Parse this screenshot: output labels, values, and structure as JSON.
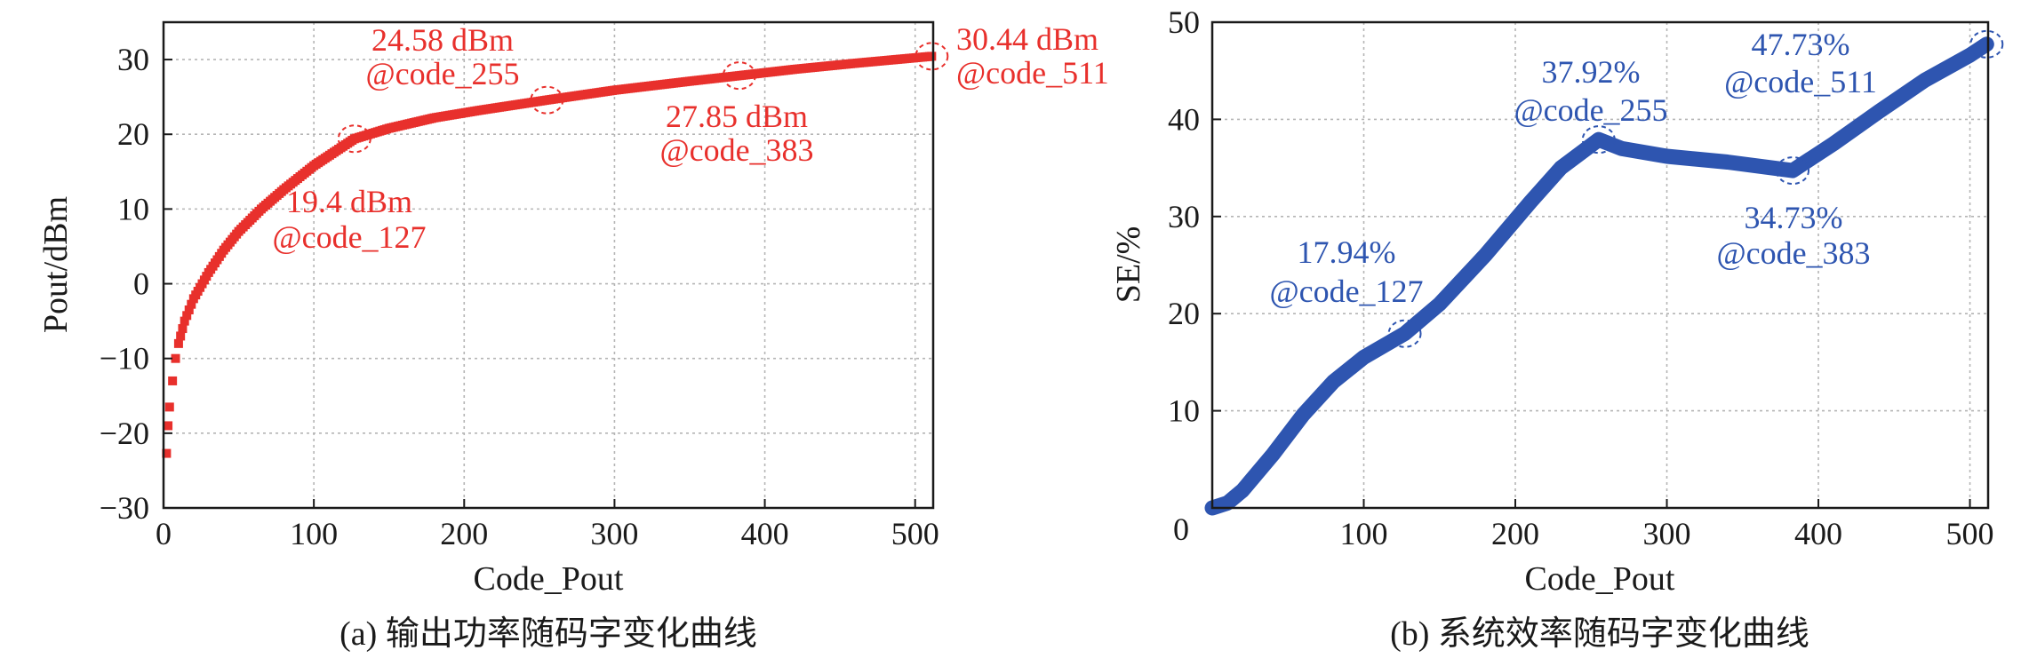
{
  "chart_data": [
    {
      "type": "scatter",
      "caption": "(a) 输出功率随码字变化曲线",
      "xlabel": "Code_Pout",
      "ylabel": "Pout/dBm",
      "xlim": [
        0,
        512
      ],
      "ylim": [
        -30,
        35
      ],
      "xticks": [
        0,
        100,
        200,
        300,
        400,
        500
      ],
      "yticks": [
        -30,
        -20,
        -10,
        0,
        10,
        20,
        30
      ],
      "ytick_labels": [
        "−30",
        "−20",
        "−10",
        "0",
        "10",
        "20",
        "30"
      ],
      "grid": true,
      "color": "#e8302c",
      "curve": {
        "x": [
          2,
          3,
          4,
          6,
          8,
          10,
          14,
          20,
          30,
          40,
          50,
          65,
          80,
          100,
          127,
          150,
          180,
          210,
          255,
          300,
          350,
          383,
          420,
          460,
          511
        ],
        "y": [
          -22.7,
          -19,
          -16.5,
          -13,
          -10,
          -8,
          -5,
          -2,
          1.5,
          4.5,
          7,
          10,
          12.6,
          15.8,
          19.4,
          20.8,
          22.2,
          23.2,
          24.58,
          25.9,
          27.1,
          27.85,
          28.7,
          29.5,
          30.44
        ]
      },
      "annotations": [
        {
          "x": 127,
          "y": 19.4,
          "value": "19.4 dBm",
          "code": "@code_127"
        },
        {
          "x": 255,
          "y": 24.58,
          "value": "24.58 dBm",
          "code": "@code_255"
        },
        {
          "x": 383,
          "y": 27.85,
          "value": "27.85 dBm",
          "code": "@code_383"
        },
        {
          "x": 511,
          "y": 30.44,
          "value": "30.44 dBm",
          "code": "@code_511"
        }
      ]
    },
    {
      "type": "line",
      "caption": "(b) 系统效率随码字变化曲线",
      "xlabel": "Code_Pout",
      "ylabel": "SE/%",
      "xlim": [
        0,
        512
      ],
      "ylim": [
        0,
        50
      ],
      "xticks": [
        100,
        200,
        300,
        400,
        500
      ],
      "yticks": [
        10,
        20,
        30,
        40,
        50
      ],
      "origin_label": "0",
      "grid": true,
      "color": "#2e55b0",
      "curve": {
        "x": [
          0,
          10,
          20,
          40,
          60,
          80,
          100,
          127,
          150,
          180,
          210,
          230,
          255,
          270,
          300,
          340,
          383,
          410,
          440,
          470,
          500,
          511
        ],
        "y": [
          0,
          0.5,
          1.8,
          5.5,
          9.6,
          13,
          15.5,
          17.94,
          21,
          26,
          31.5,
          35,
          37.92,
          37,
          36.2,
          35.6,
          34.73,
          37.5,
          40.8,
          44,
          46.6,
          47.73
        ]
      },
      "annotations": [
        {
          "x": 127,
          "y": 17.94,
          "value": "17.94%",
          "code": "@code_127"
        },
        {
          "x": 255,
          "y": 37.92,
          "value": "37.92%",
          "code": "@code_255"
        },
        {
          "x": 383,
          "y": 34.73,
          "value": "34.73%",
          "code": "@code_383"
        },
        {
          "x": 511,
          "y": 47.73,
          "value": "47.73%",
          "code": "@code_511"
        }
      ]
    }
  ]
}
